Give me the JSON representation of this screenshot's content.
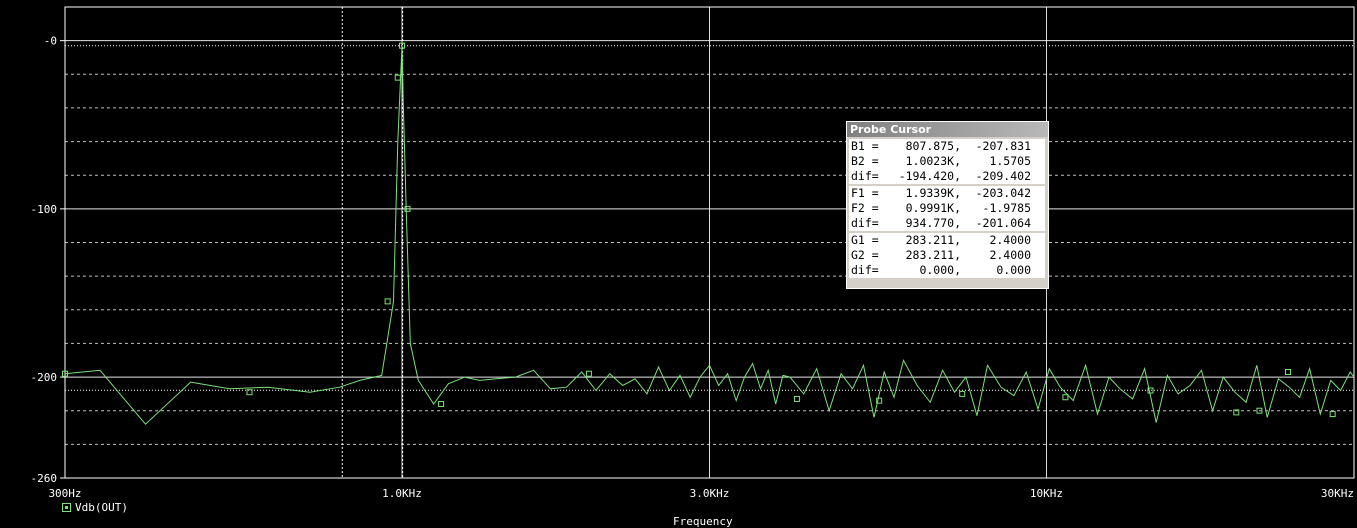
{
  "chart_data": {
    "type": "line",
    "xscale": "log",
    "xlim": [
      300,
      30000
    ],
    "ylim": [
      -260,
      20
    ],
    "y_ticks": [
      {
        "value": 0,
        "label": "-0"
      },
      {
        "value": -100,
        "label": "-100"
      },
      {
        "value": -200,
        "label": "-200"
      },
      {
        "value": -260,
        "label": "-260"
      }
    ],
    "x_ticks": [
      {
        "value": 300,
        "label": "300Hz"
      },
      {
        "value": 1000,
        "label": "1.0KHz"
      },
      {
        "value": 3000,
        "label": "3.0KHz"
      },
      {
        "value": 10000,
        "label": "10KHz"
      },
      {
        "value": 30000,
        "label": "30KHz"
      }
    ],
    "xlabel": "Frequency",
    "grid": true,
    "series": [
      {
        "name": "Vdb(OUT)",
        "color": "#7ee07a",
        "x": [
          300,
          340,
          400,
          470,
          540,
          620,
          720,
          800,
          860,
          930,
          970,
          985,
          995,
          1000,
          1005,
          1015,
          1030,
          1060,
          1120,
          1180,
          1250,
          1320,
          1400,
          1500,
          1600,
          1700,
          1800,
          1900,
          2000,
          2100,
          2200,
          2300,
          2400,
          2500,
          2600,
          2700,
          2800,
          2900,
          3000,
          3100,
          3200,
          3300,
          3400,
          3500,
          3600,
          3700,
          3800,
          3900,
          4000,
          4200,
          4400,
          4600,
          4800,
          5000,
          5200,
          5400,
          5600,
          5800,
          6000,
          6300,
          6600,
          6900,
          7200,
          7500,
          7800,
          8100,
          8500,
          8900,
          9300,
          9700,
          10100,
          10500,
          11000,
          11500,
          12000,
          12500,
          13000,
          13600,
          14200,
          14800,
          15400,
          16000,
          16700,
          17400,
          18100,
          18800,
          19600,
          20400,
          21200,
          22000,
          22900,
          23800,
          24700,
          25600,
          26600,
          27600,
          28600,
          29600,
          30000
        ],
        "y": [
          -198,
          -196,
          -228,
          -203,
          -207,
          -206,
          -209,
          -206,
          -202,
          -199,
          -155,
          -60,
          -22,
          -3,
          -40,
          -100,
          -180,
          -202,
          -216,
          -204,
          -200,
          -202,
          -201,
          -200,
          -196,
          -207,
          -206,
          -197,
          -208,
          -198,
          -205,
          -201,
          -210,
          -194,
          -208,
          -199,
          -212,
          -200,
          -193,
          -205,
          -198,
          -214,
          -200,
          -192,
          -207,
          -196,
          -216,
          -199,
          -200,
          -210,
          -195,
          -220,
          -198,
          -207,
          -193,
          -224,
          -197,
          -212,
          -190,
          -205,
          -215,
          -196,
          -209,
          -200,
          -223,
          -193,
          -206,
          -211,
          -197,
          -219,
          -195,
          -206,
          -214,
          -193,
          -222,
          -200,
          -207,
          -213,
          -195,
          -227,
          -199,
          -210,
          -205,
          -196,
          -220,
          -200,
          -209,
          -215,
          -193,
          -224,
          -201,
          -206,
          -212,
          -195,
          -222,
          -202,
          -208,
          -197,
          -200
        ],
        "markers": [
          {
            "x": 300,
            "y": -198
          },
          {
            "x": 580,
            "y": -209
          },
          {
            "x": 950,
            "y": -155
          },
          {
            "x": 985,
            "y": -22
          },
          {
            "x": 1000,
            "y": -3
          },
          {
            "x": 1020,
            "y": -100
          },
          {
            "x": 1150,
            "y": -216
          },
          {
            "x": 1950,
            "y": -198
          },
          {
            "x": 4100,
            "y": -213
          },
          {
            "x": 5500,
            "y": -214
          },
          {
            "x": 7400,
            "y": -210
          },
          {
            "x": 10700,
            "y": -212
          },
          {
            "x": 14500,
            "y": -208
          },
          {
            "x": 19700,
            "y": -221
          },
          {
            "x": 21400,
            "y": -220
          },
          {
            "x": 23700,
            "y": -197
          },
          {
            "x": 27800,
            "y": -222
          }
        ]
      }
    ],
    "cursors": [
      {
        "x": 807.875
      },
      {
        "x": 1002.3
      }
    ]
  },
  "probe_cursor": {
    "title": "Probe Cursor",
    "groups": [
      [
        {
          "label": "B1 =",
          "v1": "807.875,",
          "v2": "-207.831"
        },
        {
          "label": "B2 =",
          "v1": "1.0023K,",
          "v2": "1.5705"
        },
        {
          "label": "dif=",
          "v1": "-194.420,",
          "v2": "-209.402"
        }
      ],
      [
        {
          "label": "F1 =",
          "v1": "1.9339K,",
          "v2": "-203.042"
        },
        {
          "label": "F2 =",
          "v1": "0.9991K,",
          "v2": "-1.9785"
        },
        {
          "label": "dif=",
          "v1": "934.770,",
          "v2": "-201.064"
        }
      ],
      [
        {
          "label": "G1 =",
          "v1": "283.211,",
          "v2": "2.4000"
        },
        {
          "label": "G2 =",
          "v1": "283.211,",
          "v2": "2.4000"
        },
        {
          "label": "dif=",
          "v1": "0.000,",
          "v2": "0.000"
        }
      ]
    ]
  },
  "legend": {
    "label": "Vdb(OUT)"
  }
}
